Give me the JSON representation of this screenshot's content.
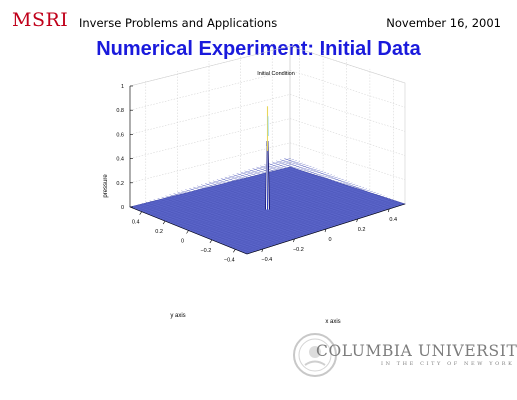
{
  "header": {
    "logo": "MSRI",
    "course": "Inverse Problems and Applications",
    "date": "November 16, 2001"
  },
  "slide": {
    "title": "Numerical Experiment: Initial Data"
  },
  "chart_data": {
    "type": "surface",
    "title": "Initial Condition",
    "xlabel": "x axis",
    "ylabel": "y axis",
    "zlabel": "pressure",
    "x_ticks": [
      "−0.4",
      "−0.2",
      "0",
      "0.2",
      "0.4"
    ],
    "y_ticks": [
      "0.4",
      "0.2",
      "0",
      "−0.2",
      "−0.4"
    ],
    "z_ticks": [
      "0",
      "0.2",
      "0.4",
      "0.6",
      "0.8",
      "1"
    ],
    "xlim": [
      -0.5,
      0.5
    ],
    "ylim": [
      -0.5,
      0.5
    ],
    "zlim": [
      0,
      1
    ],
    "grid": true,
    "surface_color": "#5a64c8",
    "peak": {
      "x": 0,
      "y": 0,
      "z": 0.82
    }
  },
  "footer": {
    "institution": "COLUMBIA UNIVERSITY",
    "tagline": "IN THE CITY OF NEW YORK"
  }
}
